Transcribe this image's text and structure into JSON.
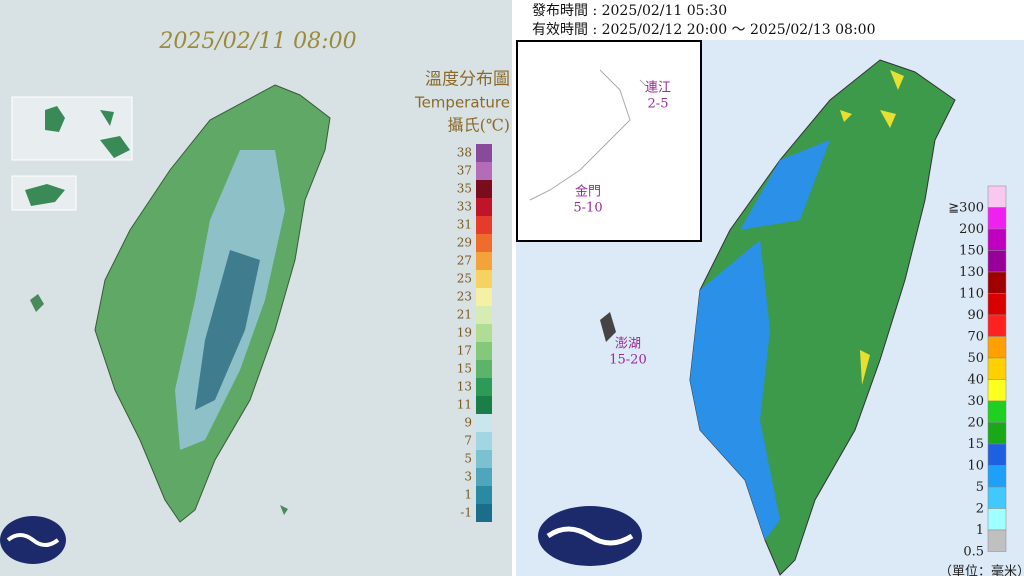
{
  "temperature_map": {
    "timestamp": "2025/02/11 08:00",
    "title": "溫度分布圖",
    "subtitle": "Temperature",
    "unit": "攝氏(℃)",
    "legend": [
      {
        "label": "38",
        "color": "#8a4a9c"
      },
      {
        "label": "37",
        "color": "#b46cb8"
      },
      {
        "label": "35",
        "color": "#7a0c1e"
      },
      {
        "label": "33",
        "color": "#c0142a"
      },
      {
        "label": "31",
        "color": "#e63a2a"
      },
      {
        "label": "29",
        "color": "#f06c2c"
      },
      {
        "label": "27",
        "color": "#f4a23c"
      },
      {
        "label": "25",
        "color": "#f8d260"
      },
      {
        "label": "23",
        "color": "#f4f0a4"
      },
      {
        "label": "21",
        "color": "#d6ecb2"
      },
      {
        "label": "19",
        "color": "#b0dc94"
      },
      {
        "label": "17",
        "color": "#86c87a"
      },
      {
        "label": "15",
        "color": "#5cb46a"
      },
      {
        "label": "13",
        "color": "#2e9a58"
      },
      {
        "label": "11",
        "color": "#1a7e48"
      },
      {
        "label": "9",
        "color": "#c8e6ec"
      },
      {
        "label": "7",
        "color": "#a2d6e0"
      },
      {
        "label": "5",
        "color": "#7ac2d2"
      },
      {
        "label": "3",
        "color": "#4ea6bc"
      },
      {
        "label": "1",
        "color": "#2a8aa4"
      },
      {
        "label": "-1",
        "color": "#1a6e8a"
      }
    ]
  },
  "rain_map": {
    "issued": "發布時間 : 2025/02/11 05:30",
    "valid": "有效時間 : 2025/02/12 20:00 ～ 2025/02/13 08:00",
    "regions": [
      {
        "name": "連江",
        "range": "2-5"
      },
      {
        "name": "金門",
        "range": "5-10"
      },
      {
        "name": "澎湖",
        "range": "15-20"
      }
    ],
    "unit": "（單位：毫米）",
    "legend": [
      {
        "label": "≧300",
        "color": "#f8c8f0"
      },
      {
        "label": "200",
        "color": "#f020f0"
      },
      {
        "label": "150",
        "color": "#c000c0"
      },
      {
        "label": "130",
        "color": "#98009a"
      },
      {
        "label": "110",
        "color": "#a00000"
      },
      {
        "label": "90",
        "color": "#d80000"
      },
      {
        "label": "70",
        "color": "#ff2020"
      },
      {
        "label": "50",
        "color": "#ffa000"
      },
      {
        "label": "40",
        "color": "#ffd000"
      },
      {
        "label": "30",
        "color": "#ffff20"
      },
      {
        "label": "20",
        "color": "#20d020"
      },
      {
        "label": "15",
        "color": "#18a818"
      },
      {
        "label": "10",
        "color": "#1e60e0"
      },
      {
        "label": "5",
        "color": "#1ea0f8"
      },
      {
        "label": "2",
        "color": "#40c8ff"
      },
      {
        "label": "1",
        "color": "#a0ffff"
      },
      {
        "label": "0.5",
        "color": "#c0c0c0"
      }
    ]
  }
}
